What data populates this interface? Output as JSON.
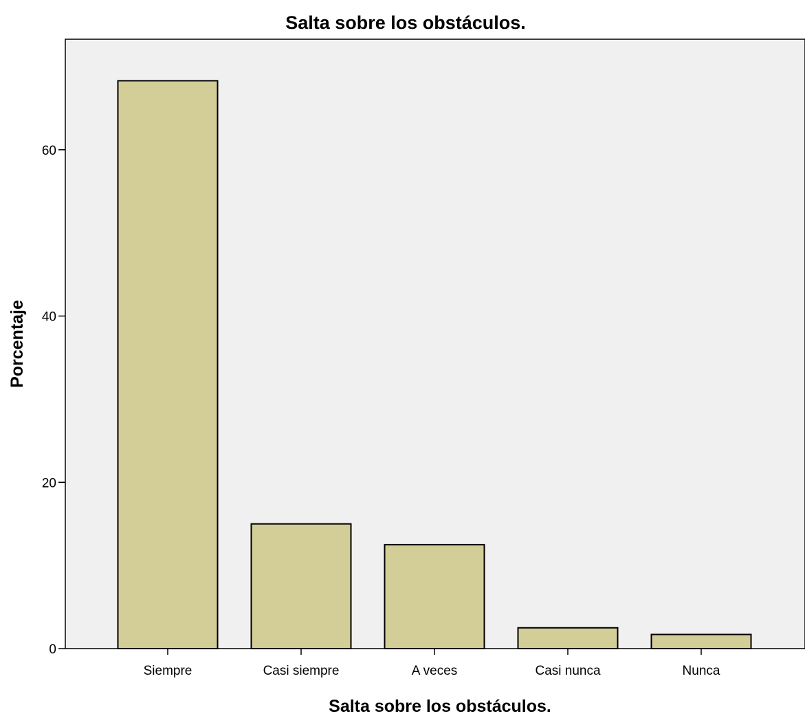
{
  "chart_data": {
    "type": "bar",
    "title": "Salta sobre los obstáculos.",
    "xlabel": "Salta sobre los obstáculos.",
    "ylabel": "Porcentaje",
    "categories": [
      "Siempre",
      "Casi siempre",
      "A veces",
      "Casi nunca",
      "Nunca"
    ],
    "values": [
      68.3,
      15.0,
      12.5,
      2.5,
      1.7
    ],
    "ylim": [
      0,
      73.3
    ],
    "yticks": [
      0,
      20,
      40,
      60
    ],
    "grid": false,
    "colors": {
      "bar_fill": "#d3cd97",
      "plot_background": "#f0f0f0"
    }
  }
}
